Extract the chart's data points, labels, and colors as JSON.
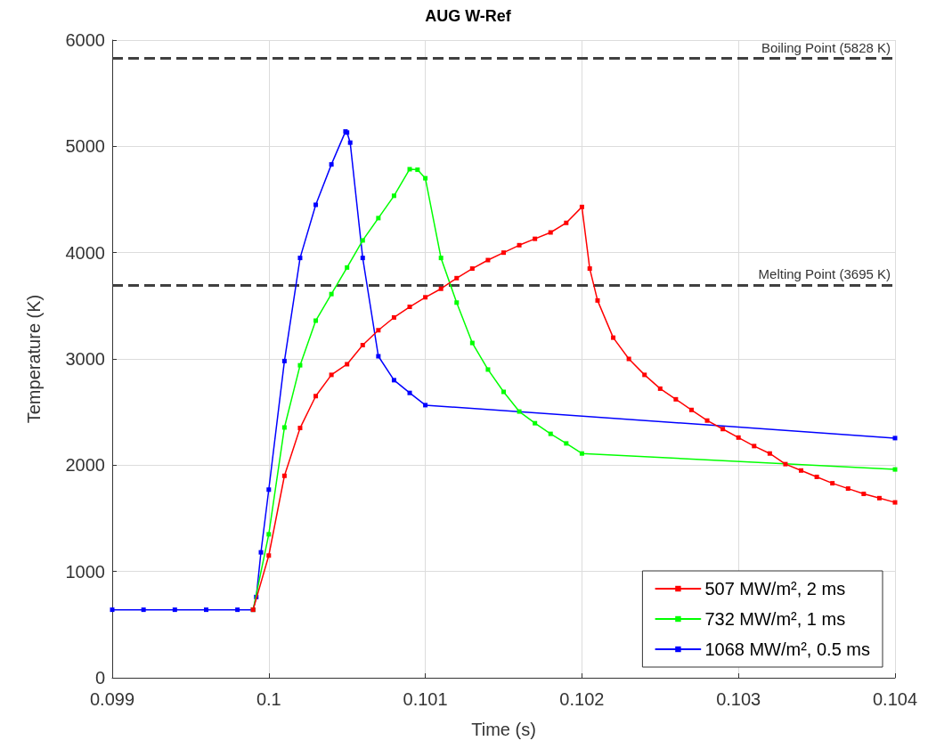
{
  "chart_data": {
    "type": "line",
    "title": "AUG W-Ref",
    "xlabel": "Time (s)",
    "ylabel": "Temperature (K)",
    "xlim": [
      0.099,
      0.104
    ],
    "xticks": [
      0.099,
      0.1,
      0.101,
      0.102,
      0.103,
      0.104
    ],
    "ylim": [
      0,
      6000
    ],
    "yticks": [
      0,
      1000,
      2000,
      3000,
      4000,
      5000,
      6000
    ],
    "grid": true,
    "legend": "bottom right",
    "marker": "square",
    "line_style": "solid",
    "ref_lines": [
      {
        "axis": "y",
        "value": 5828,
        "label": "Boiling Point (5828 K)",
        "color": "#404040",
        "line_style": "dashed"
      },
      {
        "axis": "y",
        "value": 3695,
        "label": "Melting Point (3695 K)",
        "color": "#404040",
        "line_style": "dashed"
      }
    ],
    "series": [
      {
        "name": "507 MW/m², 2 ms",
        "color": "#ff0000",
        "x": [
          0.0999,
          0.1,
          0.1001,
          0.1002,
          0.1003,
          0.1004,
          0.1005,
          0.1006,
          0.1007,
          0.1008,
          0.1009,
          0.101,
          0.1011,
          0.1012,
          0.1013,
          0.1014,
          0.1015,
          0.1016,
          0.1017,
          0.1018,
          0.1019,
          0.102,
          0.10205,
          0.1021,
          0.1022,
          0.1023,
          0.1024,
          0.1025,
          0.1026,
          0.1027,
          0.1028,
          0.1029,
          0.103,
          0.1031,
          0.1032,
          0.1033,
          0.1034,
          0.1035,
          0.1036,
          0.1037,
          0.1038,
          0.1039,
          0.104
        ],
        "values": [
          640,
          1150,
          1900,
          2350,
          2650,
          2850,
          2950,
          3130,
          3270,
          3390,
          3490,
          3580,
          3660,
          3760,
          3850,
          3930,
          4000,
          4070,
          4130,
          4190,
          4280,
          4430,
          3850,
          3550,
          3200,
          3000,
          2850,
          2720,
          2620,
          2520,
          2420,
          2340,
          2260,
          2180,
          2110,
          2010,
          1950,
          1890,
          1830,
          1780,
          1730,
          1690,
          1650
        ]
      },
      {
        "name": "732 MW/m², 1 ms",
        "color": "#00ff00",
        "x": [
          0.0999,
          0.1,
          0.1001,
          0.1002,
          0.1003,
          0.1004,
          0.1005,
          0.1006,
          0.1007,
          0.1008,
          0.1009,
          0.10095,
          0.101,
          0.1011,
          0.1012,
          0.1013,
          0.1014,
          0.1015,
          0.1016,
          0.1017,
          0.1018,
          0.1019,
          0.102,
          0.104
        ],
        "values": [
          640,
          1350,
          2355,
          2940,
          3360,
          3610,
          3860,
          4115,
          4325,
          4535,
          4785,
          4780,
          4700,
          3950,
          3530,
          3150,
          2900,
          2690,
          2505,
          2395,
          2295,
          2205,
          2110,
          1960
        ]
      },
      {
        "name": "1068 MW/m², 0.5 ms",
        "color": "#0000ff",
        "x": [
          0.099,
          0.0992,
          0.0994,
          0.0996,
          0.0998,
          0.0999,
          0.09992,
          0.09995,
          0.1,
          0.1001,
          0.1002,
          0.1003,
          0.1004,
          0.10049,
          0.1005,
          0.10052,
          0.1006,
          0.1007,
          0.1008,
          0.1009,
          0.101,
          0.104
        ],
        "values": [
          640,
          640,
          640,
          640,
          640,
          640,
          760,
          1180,
          1770,
          2980,
          3950,
          4450,
          4830,
          5140,
          5130,
          5035,
          3950,
          3025,
          2800,
          2680,
          2565,
          2255
        ]
      }
    ]
  }
}
